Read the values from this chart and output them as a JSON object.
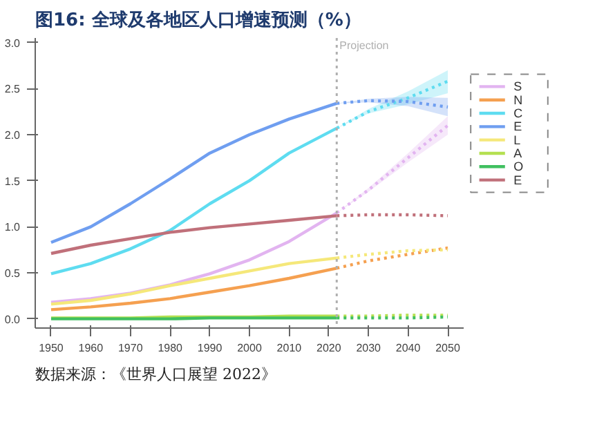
{
  "chart_data": {
    "type": "line",
    "title": "图16:  全球及各地区人口增速预测（%）",
    "annotations": [
      "数据来源：《世界人口展望 2022》"
    ],
    "x": [
      1950,
      1960,
      1970,
      1980,
      1990,
      2000,
      2010,
      2022
    ],
    "xlim": [
      1946,
      2054
    ],
    "xticks": [
      1950,
      1960,
      1970,
      1980,
      1990,
      2000,
      2010,
      2020,
      2030,
      2040,
      2050
    ],
    "ylim": [
      -0.1,
      3.05
    ],
    "yticks": [
      {
        "value": 0,
        "label": "0.0"
      },
      {
        "value": 0.5,
        "label": "0.5"
      },
      {
        "value": 1,
        "label": "1.0"
      },
      {
        "value": 1.5,
        "label": "1.5"
      },
      {
        "value": 2,
        "label": "2.0"
      },
      {
        "value": 2.5,
        "label": "2.5"
      },
      {
        "value": 3,
        "label": "3.0"
      }
    ],
    "grid": false,
    "legend": "right",
    "line_style": "solid",
    "ref_lines": [
      {
        "axis": "x",
        "value": 2022,
        "label": "Projection",
        "color": "#b0b0b0",
        "line_style": "dotted"
      }
    ],
    "series": [
      {
        "name": "S",
        "color": "#e2b4f0",
        "values": [
          0.18,
          0.22,
          0.28,
          0.37,
          0.49,
          0.64,
          0.84,
          1.15
        ]
      },
      {
        "name": "N",
        "color": "#f5a050",
        "values": [
          0.1,
          0.13,
          0.17,
          0.22,
          0.29,
          0.36,
          0.44,
          0.55
        ]
      },
      {
        "name": "C",
        "color": "#5edcf0",
        "values": [
          0.49,
          0.6,
          0.76,
          0.96,
          1.25,
          1.5,
          1.8,
          2.07
        ]
      },
      {
        "name": "E",
        "color": "#6f9ef0",
        "values": [
          0.83,
          1.0,
          1.25,
          1.52,
          1.8,
          2.0,
          2.17,
          2.34
        ]
      },
      {
        "name": "L",
        "color": "#f5e87a",
        "values": [
          0.16,
          0.2,
          0.27,
          0.36,
          0.44,
          0.52,
          0.6,
          0.66
        ]
      },
      {
        "name": "A",
        "color": "#b4e050",
        "values": [
          0.01,
          0.01,
          0.01,
          0.02,
          0.02,
          0.02,
          0.03,
          0.03
        ]
      },
      {
        "name": "O",
        "color": "#40c060",
        "values": [
          0.0,
          0.0,
          0.0,
          0.0,
          0.01,
          0.01,
          0.01,
          0.01
        ]
      },
      {
        "name": "E",
        "color": "#c0707a",
        "values": [
          0.71,
          0.8,
          0.87,
          0.94,
          0.99,
          1.03,
          1.07,
          1.12
        ]
      },
      {
        "color": "#e2b4f0",
        "line_style": "dotted",
        "x": [
          2022,
          2030,
          2040,
          2050
        ],
        "values": [
          1.15,
          1.4,
          1.75,
          2.1
        ],
        "lower": [
          1.15,
          1.38,
          1.7,
          2.0
        ],
        "upper": [
          1.15,
          1.42,
          1.8,
          2.2
        ]
      },
      {
        "color": "#f5a050",
        "line_style": "dotted",
        "x": [
          2022,
          2030,
          2040,
          2050
        ],
        "values": [
          0.55,
          0.63,
          0.7,
          0.77
        ]
      },
      {
        "color": "#5edcf0",
        "line_style": "dotted",
        "x": [
          2022,
          2030,
          2040,
          2050
        ],
        "values": [
          2.07,
          2.25,
          2.4,
          2.58
        ],
        "lower": [
          2.07,
          2.23,
          2.33,
          2.45
        ],
        "upper": [
          2.07,
          2.28,
          2.47,
          2.7
        ]
      },
      {
        "color": "#6f9ef0",
        "line_style": "dotted",
        "x": [
          2022,
          2030,
          2040,
          2050
        ],
        "values": [
          2.34,
          2.37,
          2.36,
          2.3
        ],
        "lower": [
          2.34,
          2.35,
          2.31,
          2.2
        ],
        "upper": [
          2.34,
          2.39,
          2.41,
          2.4
        ]
      },
      {
        "color": "#f5e87a",
        "line_style": "dotted",
        "x": [
          2022,
          2030,
          2040,
          2050
        ],
        "values": [
          0.66,
          0.7,
          0.74,
          0.75
        ]
      },
      {
        "color": "#b4e050",
        "line_style": "dotted",
        "x": [
          2022,
          2030,
          2040,
          2050
        ],
        "values": [
          0.03,
          0.03,
          0.04,
          0.04
        ]
      },
      {
        "color": "#40c060",
        "line_style": "dotted",
        "x": [
          2022,
          2030,
          2040,
          2050
        ],
        "values": [
          0.01,
          0.01,
          0.01,
          0.02
        ]
      },
      {
        "color": "#c0707a",
        "line_style": "dotted",
        "x": [
          2022,
          2030,
          2040,
          2050
        ],
        "values": [
          1.12,
          1.13,
          1.13,
          1.12
        ]
      }
    ]
  }
}
